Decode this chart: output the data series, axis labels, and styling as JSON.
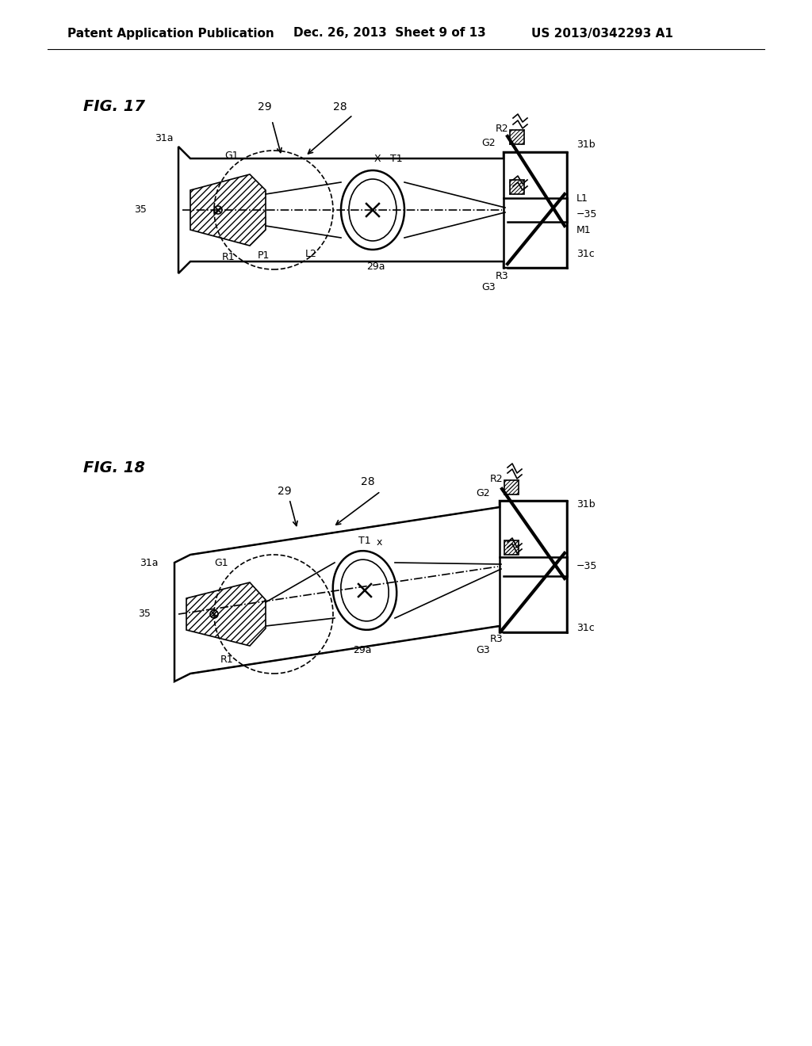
{
  "header_left": "Patent Application Publication",
  "header_mid": "Dec. 26, 2013  Sheet 9 of 13",
  "header_right": "US 2013/0342293 A1",
  "fig17_label": "FIG. 17",
  "fig18_label": "FIG. 18",
  "bg_color": "#ffffff",
  "line_color": "#000000",
  "hatch_color": "#000000"
}
